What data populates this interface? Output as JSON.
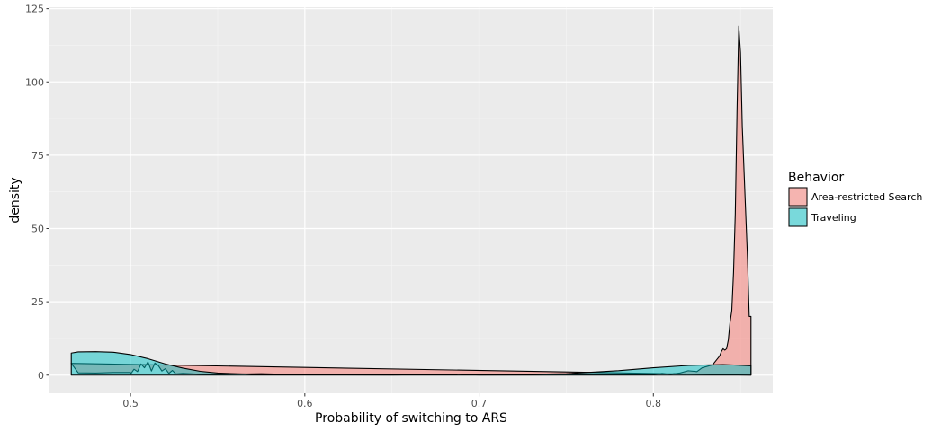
{
  "chart_data": {
    "type": "area",
    "title": "",
    "xlabel": "Probability of switching to ARS",
    "ylabel": "density",
    "xlim": [
      0.4535,
      0.8685
    ],
    "ylim": [
      -6.2,
      125.5
    ],
    "x_ticks": [
      0.5,
      0.6,
      0.7,
      0.8
    ],
    "x_tick_labels": [
      "0.5",
      "0.6",
      "0.7",
      "0.8"
    ],
    "y_ticks": [
      0,
      25,
      50,
      75,
      100,
      125
    ],
    "y_tick_labels": [
      "0",
      "25",
      "50",
      "75",
      "100",
      "125"
    ],
    "grid": true,
    "legend": {
      "title": "Behavior",
      "position": "right"
    },
    "series": [
      {
        "name": "Area-restricted Search",
        "color": "#F8766D",
        "fill": "#F4B5AF",
        "x": [
          0.466,
          0.47,
          0.48,
          0.49,
          0.5,
          0.5,
          0.502,
          0.504,
          0.506,
          0.508,
          0.51,
          0.512,
          0.514,
          0.516,
          0.518,
          0.52,
          0.522,
          0.524,
          0.526,
          0.53,
          0.54,
          0.55,
          0.575,
          0.6,
          0.65,
          0.688,
          0.7,
          0.75,
          0.8,
          0.805,
          0.81,
          0.815,
          0.82,
          0.825,
          0.828,
          0.831,
          0.834,
          0.836,
          0.838,
          0.839,
          0.84,
          0.841,
          0.842,
          0.843,
          0.844,
          0.845,
          0.846,
          0.847,
          0.848,
          0.849,
          0.85,
          0.851,
          0.852,
          0.853,
          0.854,
          0.855,
          0.856,
          0.856
        ],
        "y": [
          4,
          0.8,
          0.7,
          0.9,
          0.9,
          0.3,
          2,
          1.2,
          3.8,
          2.5,
          4.5,
          1.4,
          4.1,
          3.2,
          1.4,
          2.2,
          0.6,
          1.6,
          0.4,
          0.6,
          0.3,
          0.2,
          0.5,
          0.1,
          0.05,
          0.3,
          0.05,
          0.1,
          0.2,
          0.6,
          0.3,
          0.7,
          1.5,
          1.2,
          2.5,
          3,
          3.5,
          5,
          6.5,
          8,
          9,
          8.5,
          9,
          12,
          18,
          22,
          35,
          55,
          90,
          119,
          110,
          85,
          70,
          55,
          40,
          20,
          20,
          0
        ]
      },
      {
        "name": "Traveling",
        "color": "#00BFC4",
        "fill": "#7AD8DA",
        "x": [
          0.466,
          0.466,
          0.47,
          0.48,
          0.49,
          0.5,
          0.51,
          0.52,
          0.53,
          0.54,
          0.55,
          0.575,
          0.6,
          0.65,
          0.7,
          0.75,
          0.78,
          0.8,
          0.82,
          0.84,
          0.856,
          0.856
        ],
        "y": [
          0,
          7.5,
          7.9,
          8.0,
          7.8,
          7.0,
          5.6,
          3.8,
          2.4,
          1.3,
          0.7,
          0.2,
          0.04,
          0.0,
          0.0,
          0.5,
          1.5,
          2.5,
          3.3,
          3.6,
          3.2,
          0
        ]
      }
    ]
  }
}
